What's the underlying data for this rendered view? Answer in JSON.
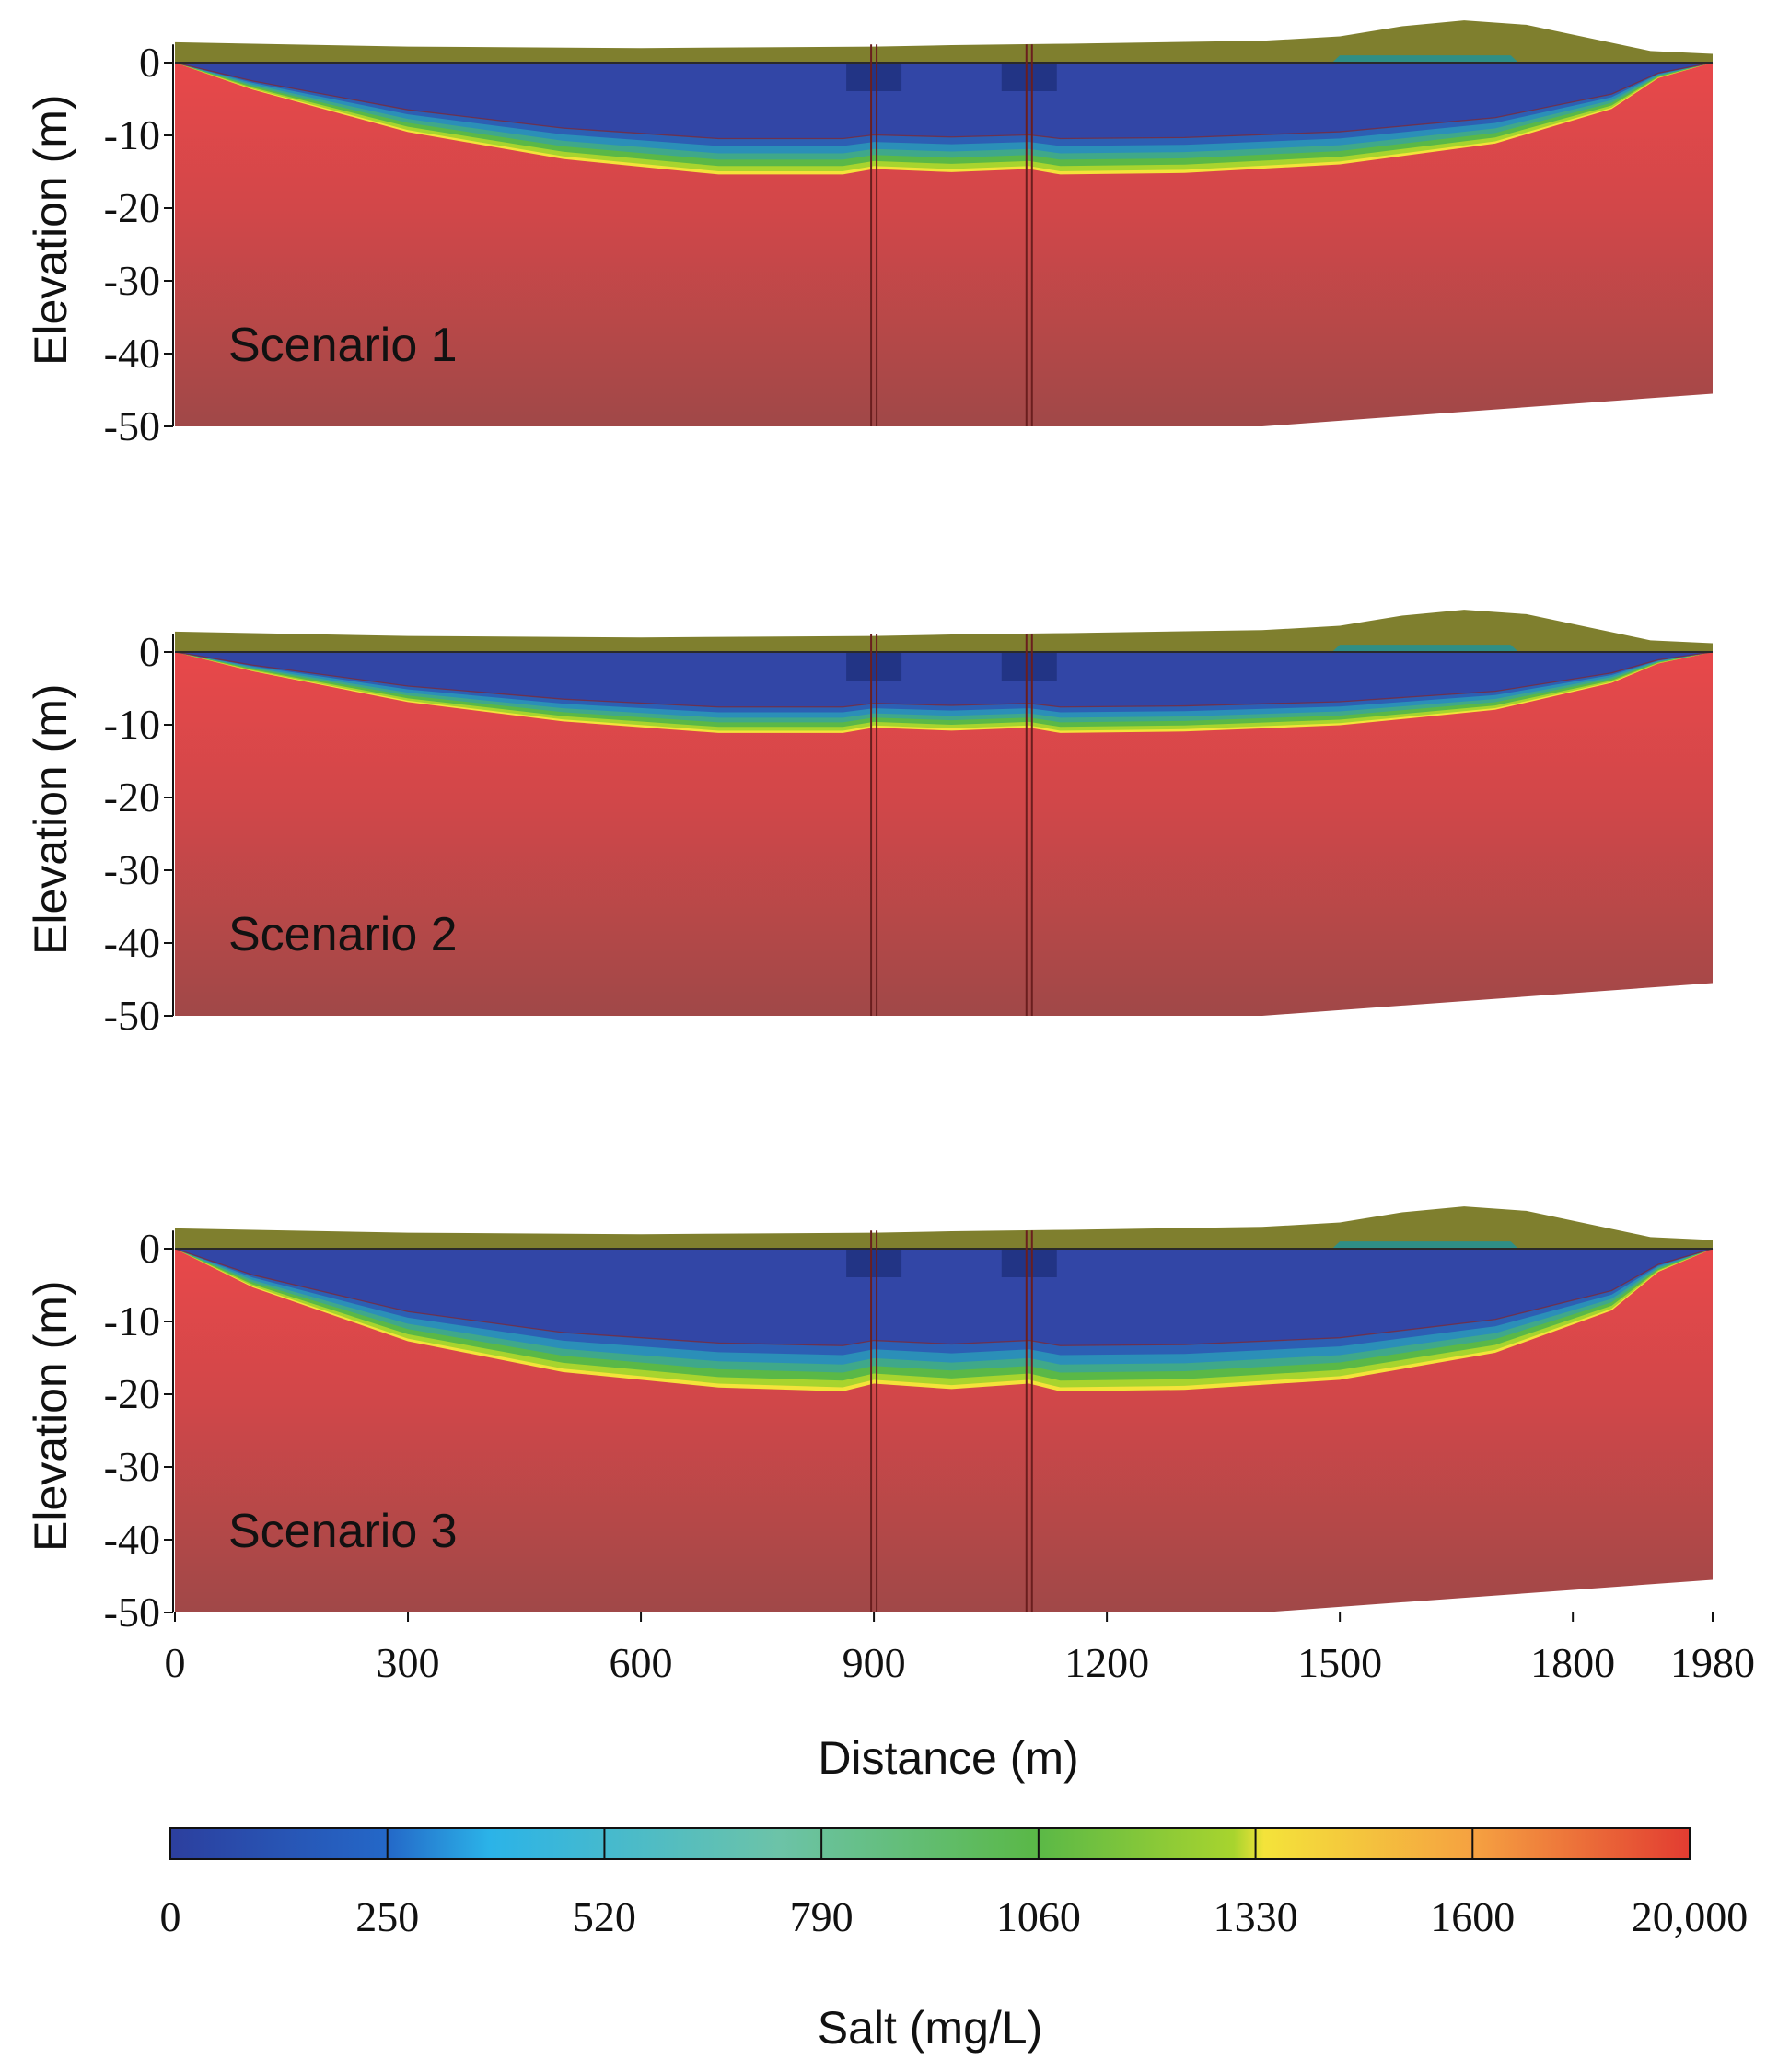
{
  "chart_data": {
    "type": "heatmap",
    "description_kind": "cross-section",
    "panels": [
      {
        "label": "Scenario 1",
        "interface_depth_profile": {
          "x": [
            0,
            100,
            300,
            500,
            700,
            860,
            900,
            1000,
            1100,
            1140,
            1300,
            1500,
            1700,
            1850,
            1910,
            1980
          ],
          "y": [
            0,
            -3.5,
            -9,
            -12.5,
            -14.5,
            -14.5,
            -13.8,
            -14.2,
            -13.8,
            -14.5,
            -14.3,
            -13.2,
            -10.5,
            -6,
            -2,
            0
          ]
        },
        "wells_x": [
          900,
          1100
        ]
      },
      {
        "label": "Scenario 2",
        "interface_depth_profile": {
          "x": [
            0,
            100,
            300,
            500,
            700,
            860,
            900,
            1000,
            1100,
            1140,
            1300,
            1500,
            1700,
            1850,
            1910,
            1980
          ],
          "y": [
            0,
            -2.5,
            -6.5,
            -9,
            -10.5,
            -10.5,
            -9.8,
            -10.2,
            -9.8,
            -10.5,
            -10.3,
            -9.5,
            -7.5,
            -4,
            -1.5,
            0
          ]
        },
        "wells_x": [
          900,
          1100
        ]
      },
      {
        "label": "Scenario 3",
        "interface_depth_profile": {
          "x": [
            0,
            100,
            300,
            500,
            700,
            860,
            900,
            1000,
            1100,
            1140,
            1300,
            1500,
            1700,
            1850,
            1910,
            1980
          ],
          "y": [
            0,
            -5,
            -12,
            -16,
            -18,
            -18.5,
            -17.5,
            -18.2,
            -17.5,
            -18.5,
            -18.3,
            -17,
            -13.5,
            -8,
            -3,
            0
          ]
        },
        "wells_x": [
          900,
          1100
        ]
      }
    ],
    "xlabel": "Distance (m)",
    "ylabel": "Elevation (m)",
    "x_ticks": [
      "0",
      "300",
      "600",
      "900",
      "1200",
      "1500",
      "1800",
      "1980"
    ],
    "x_tick_values": [
      0,
      300,
      600,
      900,
      1200,
      1500,
      1800,
      1980
    ],
    "y_ticks": [
      "0",
      "-10",
      "-20",
      "-30",
      "-40",
      "-50"
    ],
    "y_tick_values": [
      0,
      -10,
      -20,
      -30,
      -40,
      -50
    ],
    "xlim": [
      0,
      1980
    ],
    "ylim": [
      -50,
      3
    ],
    "colorbar": {
      "label": "Salt (mg/L)",
      "ticks": [
        "0",
        "250",
        "520",
        "790",
        "1060",
        "1330",
        "1600",
        "20,000"
      ],
      "tick_values": [
        0,
        250,
        520,
        790,
        1060,
        1330,
        1600,
        20000
      ],
      "colors": [
        "#2c3f9e",
        "#2468c8",
        "#2bb3e8",
        "#6cc3a8",
        "#5ab847",
        "#a8d42e",
        "#f4e33a",
        "#f5a041",
        "#e23c31"
      ]
    },
    "colors": {
      "freshwater": "#3246a6",
      "saltwater_top": "#e8484a",
      "saltwater_bottom": "#a04848",
      "surface_layer": "#7f7f2e",
      "well": "#6a1e1e"
    }
  }
}
